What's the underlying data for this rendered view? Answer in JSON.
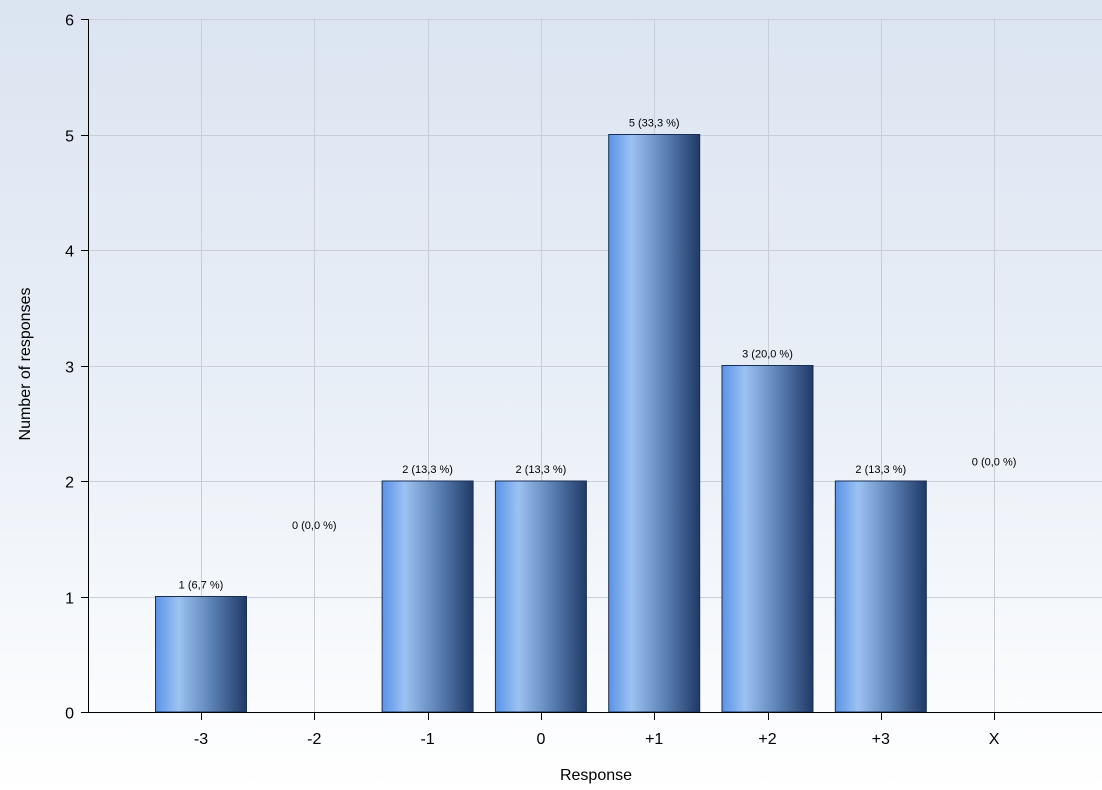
{
  "chart_data": {
    "type": "bar",
    "categories": [
      "-3",
      "-2",
      "-1",
      "0",
      "+1",
      "+2",
      "+3",
      "X"
    ],
    "values": [
      1,
      0,
      2,
      2,
      5,
      3,
      2,
      0
    ],
    "data_labels": [
      "1 (6,7 %)",
      "0 (0,0 %)",
      "2 (13,3 %)",
      "2 (13,3 %)",
      "5 (33,3 %)",
      "3 (20,0 %)",
      "2 (13,3 %)",
      "0 (0,0 %)"
    ],
    "title": "",
    "xlabel": "Response",
    "ylabel": "Number of responses",
    "ylim": [
      0,
      6
    ],
    "yticks": [
      "0",
      "1",
      "2",
      "3",
      "4",
      "5",
      "6"
    ],
    "grid": true,
    "colors": {
      "bar_light": "#9cc2f2",
      "bar_mid": "#5a93e6",
      "bar_dark": "#1f3a66"
    }
  }
}
